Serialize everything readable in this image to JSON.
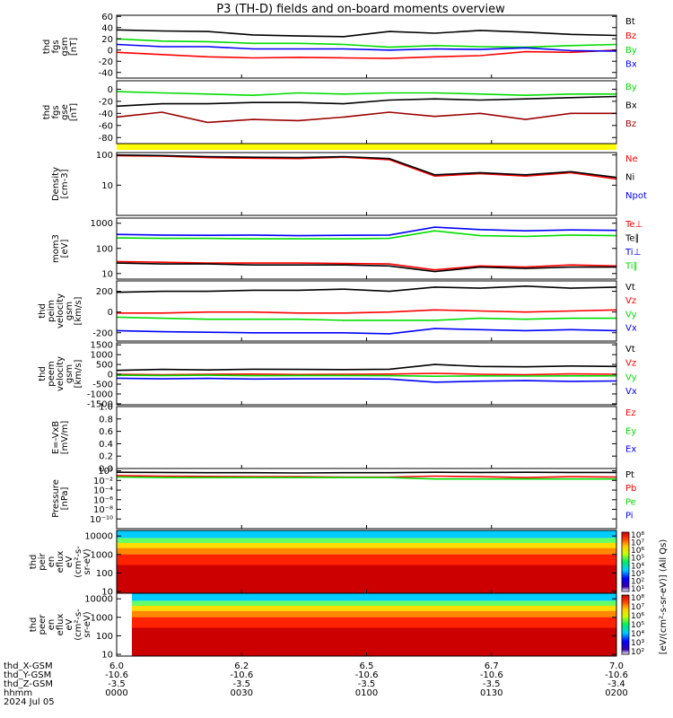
{
  "title": "P3 (TH-D) fields and on-board moments overview",
  "chart_data": [
    {
      "id": "fgs_gsm",
      "type": "line",
      "ylabel": [
        "thd",
        "fgs",
        "gsm",
        "[nT]"
      ],
      "ylim": [
        -50,
        62
      ],
      "yticks": [
        60,
        40,
        20,
        0,
        -20,
        -40
      ],
      "yticklabels": [
        "60",
        "40",
        "20",
        "0",
        "-20",
        "-40"
      ],
      "series": [
        {
          "name": "Bt",
          "color": "#000000",
          "values": [
            36,
            34,
            33,
            27,
            25,
            24,
            33,
            30,
            35,
            32,
            28,
            26
          ]
        },
        {
          "name": "Bz",
          "color": "#ff0000",
          "values": [
            -4,
            -8,
            -12,
            -14,
            -13,
            -14,
            -15,
            -12,
            -10,
            -3,
            -4,
            0
          ]
        },
        {
          "name": "By",
          "color": "#00dd00",
          "values": [
            20,
            16,
            15,
            12,
            12,
            10,
            5,
            8,
            6,
            5,
            8,
            10
          ]
        },
        {
          "name": "Bx",
          "color": "#0000ff",
          "values": [
            10,
            6,
            6,
            2,
            2,
            2,
            0,
            2,
            1,
            4,
            -1,
            -2
          ]
        }
      ]
    },
    {
      "id": "fgs_gse",
      "type": "line",
      "ylabel": [
        "thd",
        "fgs",
        "gse",
        "[nT]"
      ],
      "ylim": [
        -90,
        14
      ],
      "yticks": [
        0,
        -20,
        -40,
        -60,
        -80
      ],
      "yticklabels": [
        "0",
        "-20",
        "-40",
        "-60",
        "-80"
      ],
      "series": [
        {
          "name": "By",
          "color": "#00dd00",
          "values": [
            -4,
            -6,
            -8,
            -10,
            -6,
            -8,
            -6,
            -6,
            -8,
            -10,
            -8,
            -8
          ]
        },
        {
          "name": "Bx",
          "color": "#000000",
          "values": [
            -28,
            -24,
            -24,
            -22,
            -22,
            -24,
            -18,
            -16,
            -18,
            -16,
            -14,
            -12
          ]
        },
        {
          "name": "Bz",
          "color": "#990000",
          "values": [
            -46,
            -38,
            -55,
            -50,
            -52,
            -46,
            -38,
            -45,
            -40,
            -50,
            -40,
            -40
          ]
        }
      ]
    },
    {
      "id": "density",
      "type": "line",
      "log": true,
      "ylabel": [
        "Density",
        "[cm-3]"
      ],
      "ylim": [
        1,
        120
      ],
      "yticks": [
        100,
        10
      ],
      "yticklabels": [
        "100",
        "10"
      ],
      "series": [
        {
          "name": "Ne",
          "color": "#ff0000",
          "values": [
            95,
            92,
            82,
            78,
            76,
            84,
            70,
            20,
            24,
            20,
            26,
            16
          ]
        },
        {
          "name": "Ni",
          "color": "#000000",
          "values": [
            100,
            96,
            88,
            84,
            82,
            88,
            76,
            22,
            26,
            22,
            28,
            18
          ]
        },
        {
          "name": "Npot",
          "color": "#0000ff",
          "values": []
        }
      ]
    },
    {
      "id": "temperature",
      "type": "line",
      "log": true,
      "ylabel": [
        "mom3",
        "[eV]"
      ],
      "ylim": [
        6,
        1600
      ],
      "yticks": [
        1000,
        100,
        10
      ],
      "yticklabels": [
        "1000",
        "100",
        "10"
      ],
      "series": [
        {
          "name": "Te⊥",
          "color": "#ff0000",
          "values": [
            30,
            28,
            26,
            26,
            26,
            25,
            24,
            14,
            20,
            18,
            22,
            20
          ]
        },
        {
          "name": "Te∥",
          "color": "#000000",
          "values": [
            26,
            24,
            24,
            22,
            22,
            22,
            20,
            12,
            18,
            16,
            18,
            18
          ]
        },
        {
          "name": "Ti⊥",
          "color": "#0000ff",
          "values": [
            360,
            340,
            330,
            340,
            320,
            330,
            340,
            700,
            560,
            500,
            540,
            520
          ]
        },
        {
          "name": "Ti∥",
          "color": "#00dd00",
          "values": [
            260,
            250,
            250,
            240,
            240,
            240,
            250,
            500,
            320,
            300,
            340,
            320
          ]
        }
      ]
    },
    {
      "id": "peim_velocity",
      "type": "line",
      "ylabel": [
        "thd",
        "peim",
        "velocity",
        "gsm",
        "[km/s]"
      ],
      "ylim": [
        -280,
        300
      ],
      "yticks": [
        200,
        0,
        -200
      ],
      "yticklabels": [
        "200",
        "0",
        "-200"
      ],
      "series": [
        {
          "name": "Vt",
          "color": "#000000",
          "values": [
            190,
            200,
            200,
            210,
            210,
            220,
            200,
            240,
            230,
            250,
            230,
            240
          ]
        },
        {
          "name": "Vz",
          "color": "#ff0000",
          "values": [
            -10,
            -10,
            0,
            0,
            -10,
            -10,
            0,
            20,
            10,
            0,
            10,
            20
          ]
        },
        {
          "name": "Vy",
          "color": "#00dd00",
          "values": [
            -50,
            -60,
            -70,
            -70,
            -70,
            -80,
            -80,
            -80,
            -60,
            -70,
            -60,
            -60
          ]
        },
        {
          "name": "Vx",
          "color": "#0000ff",
          "values": [
            -180,
            -190,
            -195,
            -200,
            -200,
            -200,
            -210,
            -160,
            -170,
            -180,
            -170,
            -180
          ]
        }
      ]
    },
    {
      "id": "peem_velocity",
      "type": "line",
      "ylabel": [
        "thd",
        "peem",
        "velocity",
        "gsm",
        "[km/s]"
      ],
      "ylim": [
        -1550,
        1600
      ],
      "yticks": [
        1500,
        1000,
        500,
        0,
        -500,
        -1000,
        -1500
      ],
      "yticklabels": [
        "1500",
        "1000",
        "500",
        "0",
        "-500",
        "-1000",
        "-1500"
      ],
      "series": [
        {
          "name": "Vt",
          "color": "#000000",
          "values": [
            200,
            250,
            220,
            260,
            250,
            240,
            260,
            500,
            400,
            380,
            420,
            400
          ]
        },
        {
          "name": "Vz",
          "color": "#ff0000",
          "values": [
            0,
            -20,
            0,
            10,
            -10,
            0,
            10,
            50,
            0,
            -20,
            20,
            0
          ]
        },
        {
          "name": "Vy",
          "color": "#00dd00",
          "values": [
            -50,
            -60,
            -50,
            -70,
            -60,
            -60,
            -70,
            -100,
            -80,
            -90,
            -80,
            -80
          ]
        },
        {
          "name": "Vx",
          "color": "#0000ff",
          "values": [
            -200,
            -230,
            -210,
            -240,
            -230,
            -230,
            -240,
            -400,
            -350,
            -320,
            -360,
            -340
          ]
        }
      ]
    },
    {
      "id": "efield",
      "type": "line",
      "ylabel": [
        "E=-VxB",
        "[mV/m]"
      ],
      "ylim": [
        0,
        1
      ],
      "yticks": [
        1,
        0.8,
        0.6,
        0.4,
        0.2,
        0
      ],
      "yticklabels": [
        "1.0",
        "0.8",
        "0.6",
        "0.4",
        "0.2",
        "0.0"
      ],
      "series": [
        {
          "name": "Ez",
          "color": "#ff0000",
          "values": []
        },
        {
          "name": "Ey",
          "color": "#00dd00",
          "values": []
        },
        {
          "name": "Ex",
          "color": "#0000ff",
          "values": []
        }
      ]
    },
    {
      "id": "pressure",
      "type": "line",
      "log": true,
      "ylabel": [
        "Pressure",
        "[nPa]"
      ],
      "ylim": [
        1e-12,
        3
      ],
      "yticks": [
        1,
        0.01,
        0.0001,
        1e-06,
        1e-08,
        1e-10
      ],
      "yticklabels": [
        "10⁰",
        "10⁻²",
        "10⁻⁴",
        "10⁻⁶",
        "10⁻⁸",
        "10⁻¹⁰"
      ],
      "series": [
        {
          "name": "Pt",
          "color": "#000000",
          "values": [
            0.5,
            0.45,
            0.4,
            0.4,
            0.35,
            0.4,
            0.4,
            0.5,
            0.45,
            0.5,
            0.45,
            0.45
          ]
        },
        {
          "name": "Pb",
          "color": "#ff0000",
          "values": [
            0.1,
            0.08,
            0.07,
            0.06,
            0.06,
            0.05,
            0.05,
            0.08,
            0.06,
            0.04,
            0.06,
            0.05
          ]
        },
        {
          "name": "Pe",
          "color": "#00dd00",
          "values": [
            0.05,
            0.04,
            0.04,
            0.04,
            0.04,
            0.04,
            0.04,
            0.02,
            0.02,
            0.02,
            0.02,
            0.02
          ]
        },
        {
          "name": "Pi",
          "color": "#0000ff",
          "values": []
        }
      ]
    },
    {
      "id": "peir_spec",
      "type": "heatmap",
      "log": true,
      "ylabel": [
        "thd",
        "peir",
        "en",
        "eflux",
        "eV",
        "(cm²-s-",
        "sr-eV)"
      ],
      "ylim": [
        8,
        20000
      ],
      "yticks": [
        10000,
        1000,
        100,
        10
      ],
      "yticklabels": [
        "10000",
        "1000",
        "100",
        "10"
      ],
      "colorbar": {
        "label": "[eV/(cm²-s-sr-eV)] (All Qs)",
        "ticklabels": [
          "10⁸",
          "10⁷",
          "10⁶",
          "10⁵",
          "10⁴",
          "10³",
          "10²",
          "10¹"
        ]
      }
    },
    {
      "id": "peer_spec",
      "type": "heatmap",
      "log": true,
      "ylabel": [
        "thd",
        "peer",
        "en",
        "eflux",
        "eV",
        "(cm²-s-",
        "sr-eV)"
      ],
      "ylim": [
        8,
        20000
      ],
      "yticks": [
        10000,
        1000,
        100,
        10
      ],
      "yticklabels": [
        "10000",
        "1000",
        "100",
        "10"
      ],
      "colorbar": {
        "label": "[eV/(cm²-s-sr-eV)] (All Qs)",
        "ticklabels": [
          "10⁸",
          "10⁷",
          "10⁶",
          "10⁵",
          "10⁴",
          "10³",
          "10²"
        ]
      }
    }
  ],
  "xaxis": {
    "rows": [
      {
        "label": "thd_X-GSM",
        "values": [
          "6.0",
          "6.2",
          "6.5",
          "6.7",
          "7.0"
        ]
      },
      {
        "label": "thd_Y-GSM",
        "values": [
          "-10.6",
          "-10.6",
          "-10.6",
          "-10.6",
          "-10.6"
        ]
      },
      {
        "label": "thd_Z-GSM",
        "values": [
          "-3.5",
          "-3.5",
          "-3.5",
          "-3.5",
          "-3.4"
        ]
      },
      {
        "label": "hhmm",
        "values": [
          "0000",
          "0030",
          "0100",
          "0130",
          "0200"
        ]
      }
    ],
    "date": "2024 Jul 05"
  },
  "colors": {
    "flag_bar": "#ffff00"
  }
}
